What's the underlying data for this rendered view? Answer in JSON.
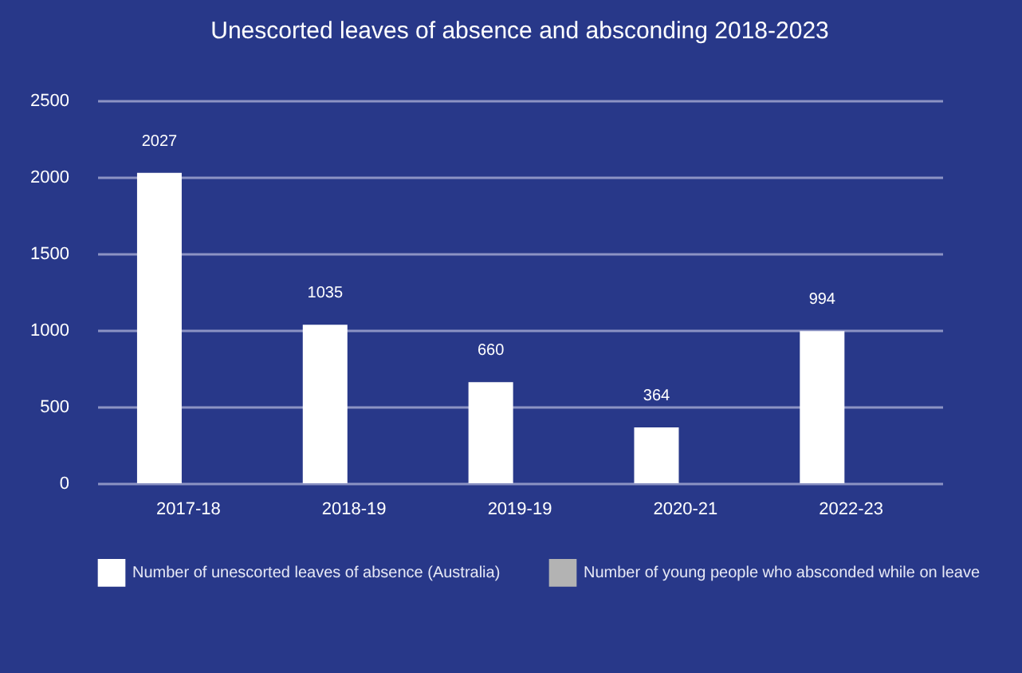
{
  "chart_data": {
    "type": "bar",
    "title": "Unescorted leaves of absence and absconding 2018-2023",
    "categories": [
      "2017-18",
      "2018-19",
      "2019-19",
      "2020-21",
      "2022-23"
    ],
    "series": [
      {
        "name": "Number of unescorted leaves of absence (Australia)",
        "color": "#ffffff",
        "values": [
          2027,
          1035,
          660,
          364,
          994
        ],
        "value_labels": [
          "2027",
          "1035",
          "660",
          "364",
          "994"
        ]
      },
      {
        "name": "Number of young people who absconded while on leave",
        "color": "#b3b3b3",
        "values": [
          0,
          0,
          0,
          0,
          0
        ]
      }
    ],
    "ylim": [
      0,
      2500
    ],
    "yticks": [
      0,
      500,
      1000,
      1500,
      2000,
      2500
    ],
    "grid": "y",
    "legend": "bottom"
  }
}
